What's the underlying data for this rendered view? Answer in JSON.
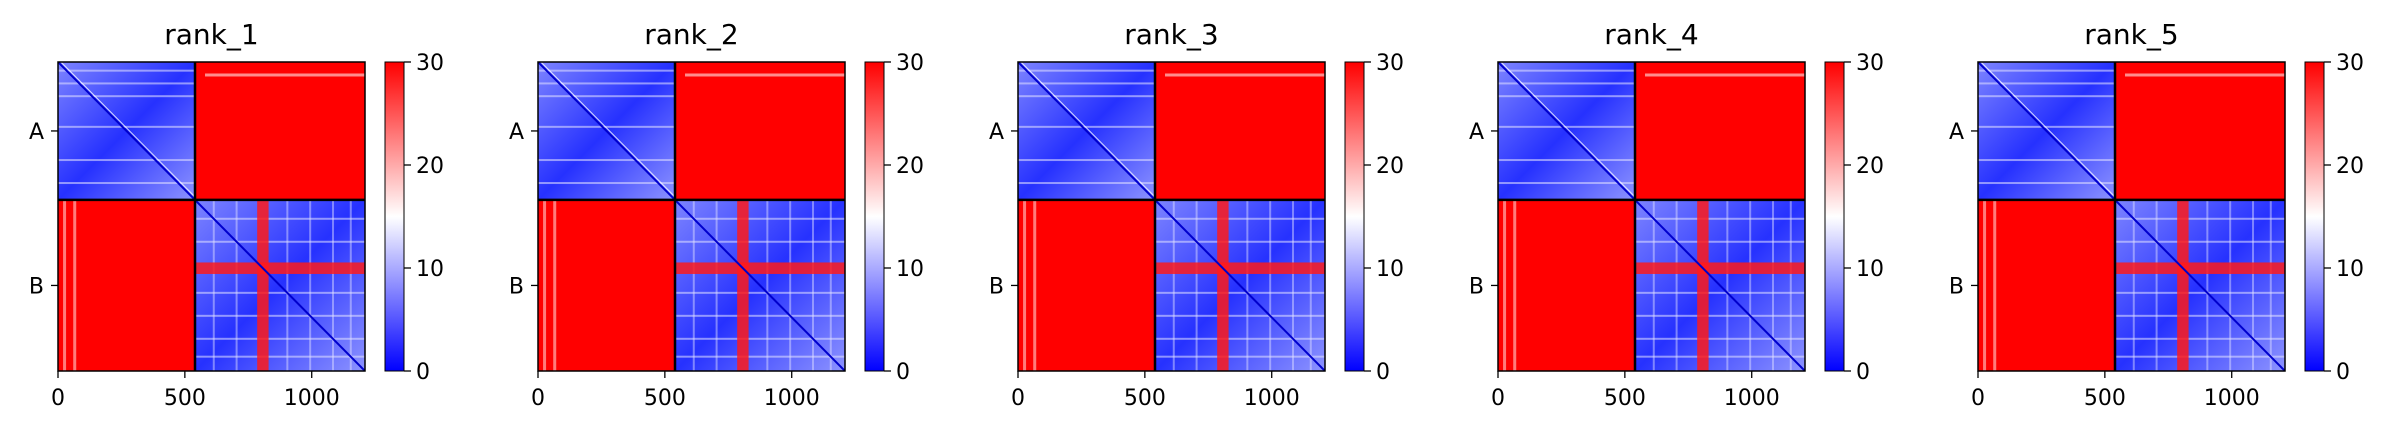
{
  "figure": {
    "type": "heatmap"
  },
  "chart_data": [
    {
      "type": "heatmap",
      "title": "rank_1",
      "xticks": [
        0,
        500,
        1000
      ],
      "xlim": [
        0,
        1210
      ],
      "row_labels": [
        "A",
        "B"
      ],
      "chain_boundary": 540,
      "colorbar": {
        "ticks": [
          0,
          10,
          20,
          30
        ],
        "range": [
          0,
          30
        ],
        "colors": [
          "#0000ff",
          "#ffffff",
          "#ff0000"
        ]
      }
    },
    {
      "type": "heatmap",
      "title": "rank_2",
      "xticks": [
        0,
        500,
        1000
      ],
      "xlim": [
        0,
        1210
      ],
      "row_labels": [
        "A",
        "B"
      ],
      "chain_boundary": 540,
      "colorbar": {
        "ticks": [
          0,
          10,
          20,
          30
        ],
        "range": [
          0,
          30
        ],
        "colors": [
          "#0000ff",
          "#ffffff",
          "#ff0000"
        ]
      }
    },
    {
      "type": "heatmap",
      "title": "rank_3",
      "xticks": [
        0,
        500,
        1000
      ],
      "xlim": [
        0,
        1210
      ],
      "row_labels": [
        "A",
        "B"
      ],
      "chain_boundary": 540,
      "colorbar": {
        "ticks": [
          0,
          10,
          20,
          30
        ],
        "range": [
          0,
          30
        ],
        "colors": [
          "#0000ff",
          "#ffffff",
          "#ff0000"
        ]
      }
    },
    {
      "type": "heatmap",
      "title": "rank_4",
      "xticks": [
        0,
        500,
        1000
      ],
      "xlim": [
        0,
        1210
      ],
      "row_labels": [
        "A",
        "B"
      ],
      "chain_boundary": 540,
      "colorbar": {
        "ticks": [
          0,
          10,
          20,
          30
        ],
        "range": [
          0,
          30
        ],
        "colors": [
          "#0000ff",
          "#ffffff",
          "#ff0000"
        ]
      }
    },
    {
      "type": "heatmap",
      "title": "rank_5",
      "xticks": [
        0,
        500,
        1000
      ],
      "xlim": [
        0,
        1210
      ],
      "row_labels": [
        "A",
        "B"
      ],
      "chain_boundary": 540,
      "colorbar": {
        "ticks": [
          0,
          10,
          20,
          30
        ],
        "range": [
          0,
          30
        ],
        "colors": [
          "#0000ff",
          "#ffffff",
          "#ff0000"
        ]
      }
    }
  ]
}
